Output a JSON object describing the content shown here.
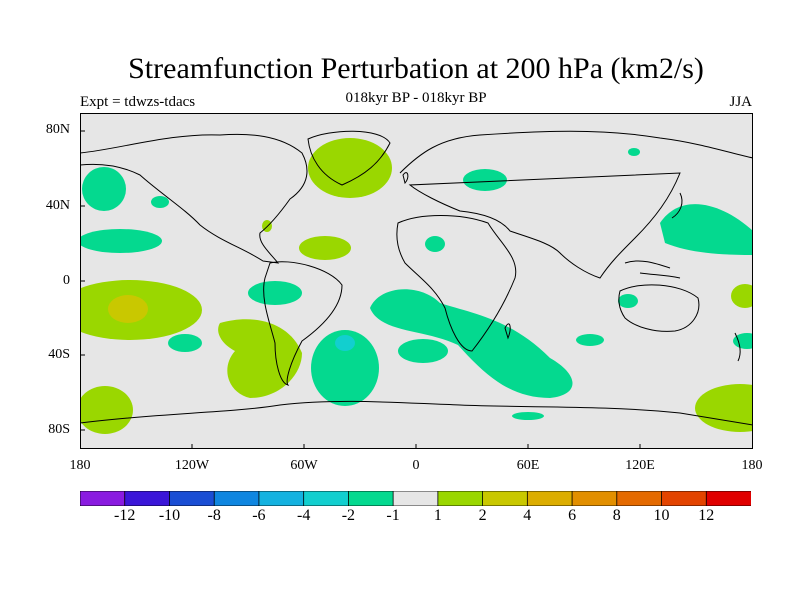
{
  "title": "Streamfunction Perturbation at 200 hPa (km2/s)",
  "subtitle": "018kyr BP - 018kyr BP",
  "left_label": "Expt = tdwzs-tdacs",
  "right_label": "JJA",
  "lat_ticks": [
    "80N",
    "40N",
    "0",
    "40S",
    "80S"
  ],
  "lon_ticks": [
    "180",
    "120W",
    "60W",
    "0",
    "60E",
    "120E",
    "180"
  ],
  "colorbar": {
    "labels": [
      "-12",
      "-10",
      "-8",
      "-6",
      "-4",
      "-2",
      "-1",
      "1",
      "2",
      "4",
      "6",
      "8",
      "10",
      "12"
    ],
    "colors": [
      "#8a1be0",
      "#3b16d8",
      "#1a4ed4",
      "#0f86e0",
      "#14b2e0",
      "#12cfcf",
      "#04d98f",
      "#e6e6e6",
      "#9ad700",
      "#c9c800",
      "#dcad00",
      "#e28f00",
      "#e46a00",
      "#e34400",
      "#e00000"
    ]
  },
  "map": {
    "ocean_color": "#e6e6e6",
    "regions": [
      {
        "level": "-2",
        "color": "#04d98f"
      },
      {
        "level": "2",
        "color": "#9ad700"
      },
      {
        "level": "4",
        "color": "#c9c800"
      }
    ]
  }
}
